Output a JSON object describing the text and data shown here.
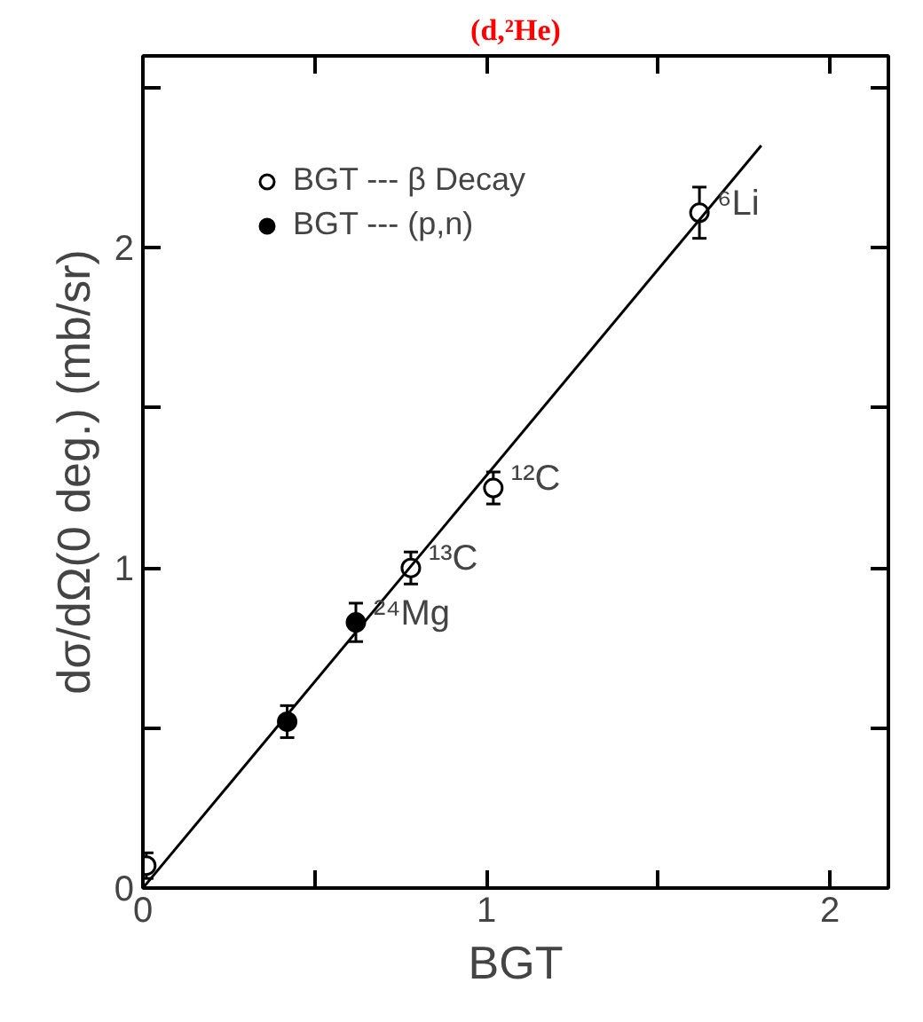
{
  "chart_data": {
    "type": "scatter",
    "title": "(d,²He)",
    "xlabel": "BGT",
    "ylabel": "dσ/dΩ(0 deg.) (mb/sr)",
    "xlim": [
      0,
      2.17
    ],
    "ylim": [
      0,
      2.6
    ],
    "xticks": [
      0,
      {
        "value": 0.5,
        "label": null
      },
      1,
      {
        "value": 1.5,
        "label": null
      },
      2
    ],
    "yticks": [
      0,
      {
        "value": 0.5,
        "label": null
      },
      1,
      {
        "value": 1.5,
        "label": null
      },
      2,
      {
        "value": 2.5,
        "label": null
      }
    ],
    "grid": false,
    "legend": "top left",
    "series": [
      {
        "name": "BGT --- β Decay",
        "color": "#000000",
        "marker": "circle",
        "x": [
          0.01,
          0.78,
          1.02,
          1.62
        ],
        "values": [
          0.07,
          1.0,
          1.25,
          2.11
        ],
        "errors": [
          0.04,
          0.05,
          0.05,
          0.08
        ]
      },
      {
        "name": "BGT --- (p,n)",
        "color": "#000000",
        "marker": "circle",
        "x": [
          0.42,
          0.62
        ],
        "values": [
          0.52,
          0.83
        ],
        "errors": [
          0.05,
          0.06
        ]
      },
      {
        "type": "line",
        "color": "#000000",
        "marker": "none",
        "x": [
          0,
          1.8
        ],
        "values": [
          0,
          2.32
        ]
      }
    ],
    "annotations": [
      {
        "text": "⁶Li",
        "x": 1.62,
        "y": 2.11
      },
      {
        "text": "¹²C",
        "x": 1.02,
        "y": 1.25
      },
      {
        "text": "¹³C",
        "x": 0.78,
        "y": 1.0
      },
      {
        "text": "²⁴Mg",
        "x": 0.62,
        "y": 0.83
      }
    ]
  }
}
